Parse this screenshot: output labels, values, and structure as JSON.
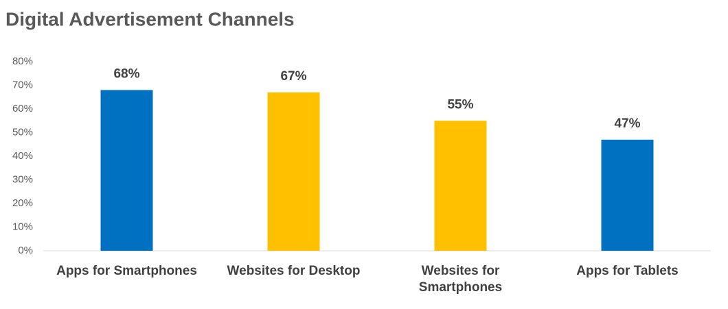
{
  "chart_data": {
    "type": "bar",
    "title": "Digital Advertisement Channels",
    "categories": [
      "Apps for Smartphones",
      "Websites for Desktop",
      "Websites for Smartphones",
      "Apps for Tablets"
    ],
    "values": [
      68,
      67,
      55,
      47
    ],
    "value_labels": [
      "68%",
      "67%",
      "55%",
      "47%"
    ],
    "colors": [
      "#0070c0",
      "#ffc000",
      "#ffc000",
      "#0070c0"
    ],
    "ylim": [
      0,
      80
    ],
    "yticks": [
      {
        "value": 0,
        "label": "0%"
      },
      {
        "value": 10,
        "label": "10%"
      },
      {
        "value": 20,
        "label": "20%"
      },
      {
        "value": 30,
        "label": "30%"
      },
      {
        "value": 40,
        "label": "40%"
      },
      {
        "value": 50,
        "label": "50%"
      },
      {
        "value": 60,
        "label": "60%"
      },
      {
        "value": 70,
        "label": "70%"
      },
      {
        "value": 80,
        "label": "80%"
      }
    ],
    "grid": false
  }
}
